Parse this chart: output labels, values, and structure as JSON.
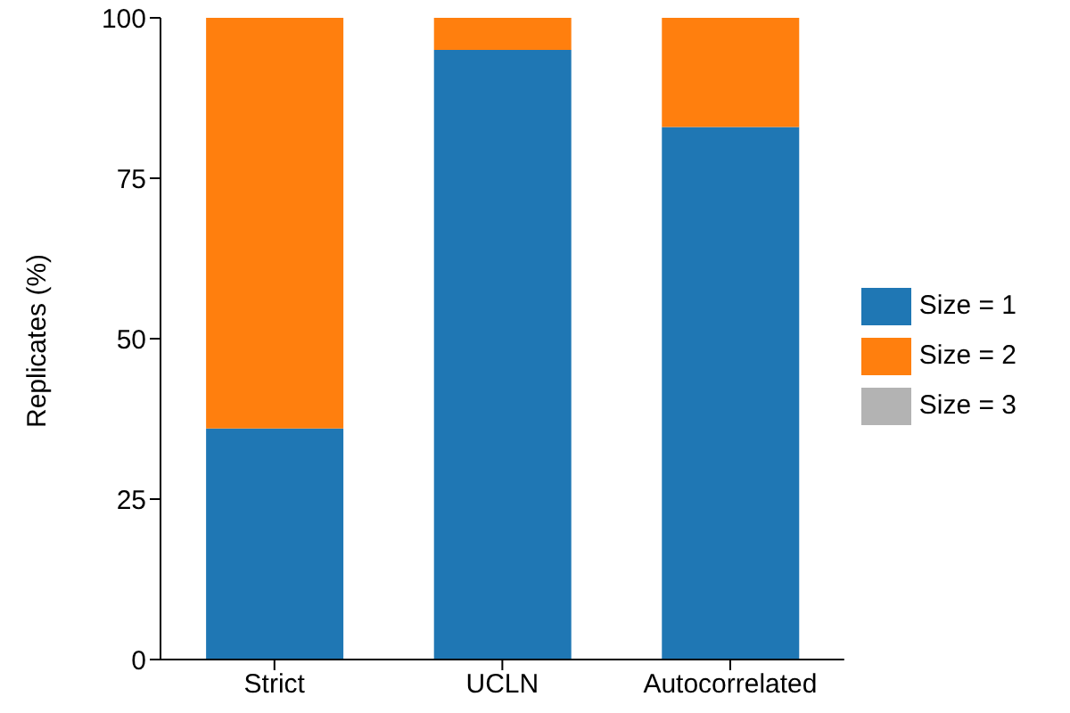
{
  "chart_data": {
    "type": "bar",
    "stacked": true,
    "ylabel": "Replicates (%)",
    "categories": [
      "Strict",
      "UCLN",
      "Autocorrelated"
    ],
    "series": [
      {
        "name": "Size = 1",
        "color": "#1f77b4",
        "values": [
          36,
          95,
          83
        ]
      },
      {
        "name": "Size = 2",
        "color": "#ff7f0e",
        "values": [
          64,
          5,
          17
        ]
      },
      {
        "name": "Size = 3",
        "color": "#b3b3b3",
        "values": [
          0,
          0,
          0
        ]
      }
    ],
    "ylim": [
      0,
      100
    ],
    "yticks": [
      0,
      25,
      50,
      75,
      100
    ],
    "grid": false,
    "legend": "right"
  }
}
